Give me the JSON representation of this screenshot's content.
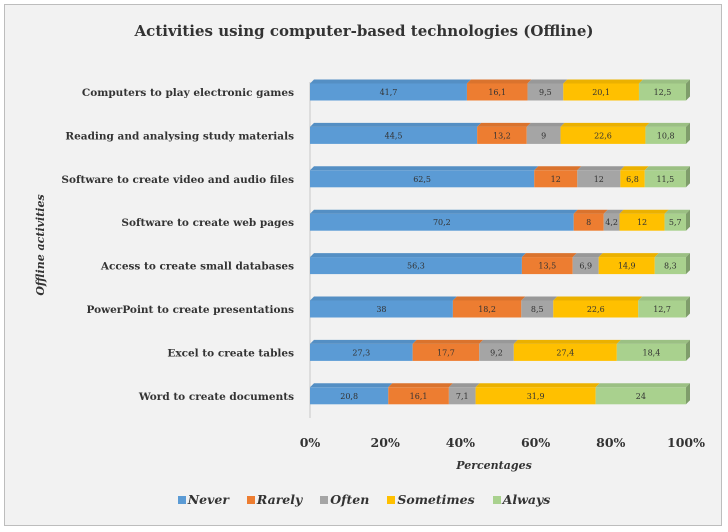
{
  "chart_data": {
    "type": "bar",
    "orientation": "horizontal",
    "stacked": "100%",
    "title": "Activities using computer-based technologies (Offline)",
    "xlabel": "Percentages",
    "ylabel": "Offline activities",
    "xlim": [
      0,
      100
    ],
    "x_ticks": [
      "0%",
      "20%",
      "40%",
      "60%",
      "80%",
      "100%"
    ],
    "grid": false,
    "legend_position": "bottom",
    "categories": [
      "Computers to play electronic games",
      "Reading and analysing study materials",
      "Software to create video and audio files",
      "Software to create web pages",
      "Access to create small databases",
      "PowerPoint to create presentations",
      "Excel to create tables",
      "Word to create documents"
    ],
    "series": [
      {
        "name": "Never",
        "color": "#5b9bd5",
        "values": [
          41.7,
          44.5,
          62.5,
          70.2,
          56.3,
          38,
          27.3,
          20.8
        ],
        "labels": [
          "41,7",
          "44,5",
          "62,5",
          "70,2",
          "56,3",
          "38",
          "27,3",
          "20,8"
        ]
      },
      {
        "name": "Rarely",
        "color": "#ed7d31",
        "values": [
          16.1,
          13.2,
          12,
          8,
          13.5,
          18.2,
          17.7,
          16.1
        ],
        "labels": [
          "16,1",
          "13,2",
          "12",
          "8",
          "13,5",
          "18,2",
          "17,7",
          "16,1"
        ]
      },
      {
        "name": "Often",
        "color": "#a5a5a5",
        "values": [
          9.5,
          9,
          12,
          4.2,
          6.9,
          8.5,
          9.2,
          7.1
        ],
        "labels": [
          "9,5",
          "9",
          "12",
          "4,2",
          "6,9",
          "8,5",
          "9,2",
          "7,1"
        ]
      },
      {
        "name": "Sometimes",
        "color": "#ffc000",
        "values": [
          20.1,
          22.6,
          6.8,
          12,
          14.9,
          22.6,
          27.4,
          31.9
        ],
        "labels": [
          "20,1",
          "22,6",
          "6,8",
          "12",
          "14,9",
          "22,6",
          "27,4",
          "31,9"
        ]
      },
      {
        "name": "Always",
        "color": "#a9d18e",
        "values": [
          12.5,
          10.8,
          11.5,
          5.7,
          8.3,
          12.7,
          18.4,
          24
        ],
        "labels": [
          "12,5",
          "10,8",
          "11,5",
          "5,7",
          "8,3",
          "12,7",
          "18,4",
          "24"
        ]
      }
    ]
  }
}
